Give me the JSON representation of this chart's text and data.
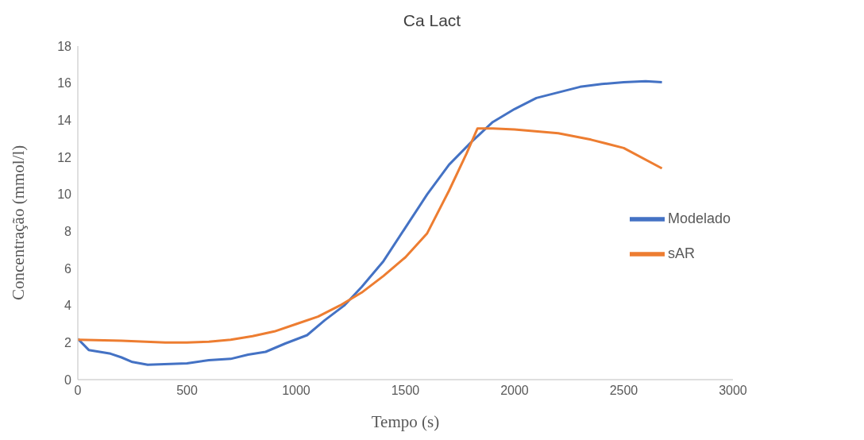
{
  "chart_data": {
    "type": "line",
    "title": "Ca Lact",
    "xlabel": "Tempo (s)",
    "ylabel": "Concentração (mmol/l)",
    "xlim": [
      0,
      3000
    ],
    "xticks": [
      0,
      500,
      1000,
      1500,
      2000,
      2500,
      3000
    ],
    "ylim": [
      0,
      18
    ],
    "yticks": [
      0,
      2,
      4,
      6,
      8,
      10,
      12,
      14,
      16,
      18
    ],
    "grid": false,
    "legend": "right",
    "marker": "none",
    "line_style": "solid",
    "series": [
      {
        "name": "Modelado",
        "color": "#4472c4",
        "x": [
          0,
          50,
          150,
          200,
          250,
          320,
          500,
          600,
          700,
          780,
          860,
          950,
          1050,
          1130,
          1220,
          1300,
          1400,
          1500,
          1600,
          1700,
          1800,
          1900,
          2000,
          2100,
          2200,
          2300,
          2400,
          2500,
          2600,
          2675
        ],
        "values": [
          2.2,
          1.6,
          1.4,
          1.2,
          0.95,
          0.8,
          0.88,
          1.05,
          1.12,
          1.35,
          1.5,
          1.95,
          2.4,
          3.2,
          4.0,
          5.0,
          6.4,
          8.2,
          10.0,
          11.6,
          12.8,
          13.9,
          14.6,
          15.2,
          15.5,
          15.8,
          15.95,
          16.05,
          16.1,
          16.05
        ]
      },
      {
        "name": "sAR",
        "color": "#ed7d31",
        "x": [
          0,
          200,
          400,
          500,
          600,
          700,
          800,
          900,
          1000,
          1100,
          1200,
          1300,
          1400,
          1500,
          1600,
          1700,
          1780,
          1830,
          1900,
          2000,
          2200,
          2350,
          2500,
          2675
        ],
        "values": [
          2.15,
          2.1,
          2.0,
          2.0,
          2.05,
          2.15,
          2.35,
          2.6,
          3.0,
          3.4,
          4.0,
          4.7,
          5.6,
          6.6,
          7.9,
          10.2,
          12.2,
          13.55,
          13.55,
          13.5,
          13.3,
          12.95,
          12.5,
          11.4
        ]
      }
    ]
  }
}
